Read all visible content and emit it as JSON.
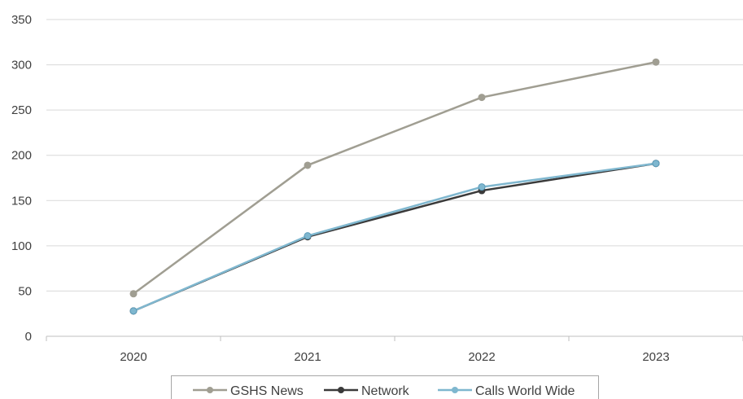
{
  "chart_data": {
    "type": "line",
    "categories": [
      "2020",
      "2021",
      "2022",
      "2023"
    ],
    "series": [
      {
        "name": "GSHS News",
        "values": [
          47,
          189,
          264,
          303
        ],
        "color": "#a09e92"
      },
      {
        "name": "Network",
        "values": [
          28,
          110,
          161,
          191
        ],
        "color": "#3a3a3a"
      },
      {
        "name": "Calls World Wide",
        "values": [
          28,
          111,
          165,
          191
        ],
        "color": "#7fb7cf"
      }
    ],
    "ylim": [
      0,
      350
    ],
    "yticks": [
      "0",
      "50",
      "100",
      "150",
      "200",
      "250",
      "300",
      "350"
    ],
    "grid": true,
    "legend": "bottom",
    "axis_color": "#bfbfbf",
    "grid_color": "#d9d9d9"
  }
}
